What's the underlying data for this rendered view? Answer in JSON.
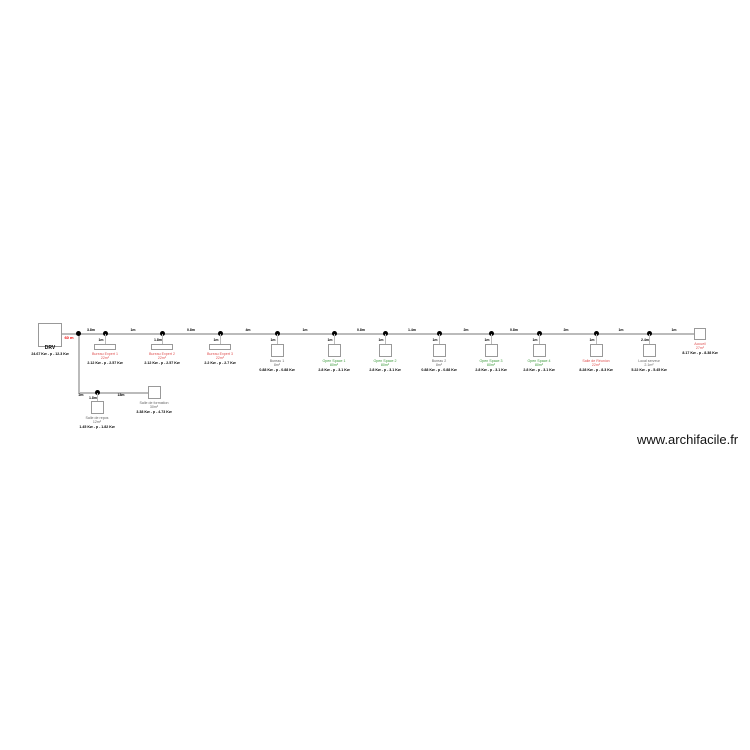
{
  "drv": {
    "label": "DRV",
    "power": "24.67 Kw - p - 12.3 Kw",
    "length": "60 m"
  },
  "segments": [
    "3.8m",
    "1m",
    "0.8m",
    "4m",
    "1m",
    "0.8m",
    "1.4m",
    "2m",
    "0.8m",
    "2m",
    "1m",
    "1m"
  ],
  "rooms": [
    {
      "name": "Bureau Expert 1",
      "area": "22m²",
      "power": "2.12 Kw - p - 2.57 Kw",
      "drop": "1m",
      "color": "#e05050"
    },
    {
      "name": "Bureau Expert 2",
      "area": "22m²",
      "power": "2.12 Kw - p - 2.57 Kw",
      "drop": "1.8m",
      "color": "#e05050"
    },
    {
      "name": "Bureau Expert 3",
      "area": "22m²",
      "power": "2.2 Kw - p - 2.7 Kw",
      "drop": "1m",
      "color": "#e05050"
    },
    {
      "name": "Bureau 1",
      "area": "8m²",
      "power": "0.88 Kw - p - 0.88 Kw",
      "drop": "1m",
      "color": "#666666"
    },
    {
      "name": "Open Space 1",
      "area": "80m²",
      "power": "2.8 Kw - p - 3.1 Kw",
      "drop": "1m",
      "color": "#3a9a3a"
    },
    {
      "name": "Open Space 2",
      "area": "80m²",
      "power": "2.8 Kw - p - 3.1 Kw",
      "drop": "1m",
      "color": "#3a9a3a"
    },
    {
      "name": "Bureau 2",
      "area": "8m²",
      "power": "0.88 Kw - p - 0.88 Kw",
      "drop": "1m",
      "color": "#666666"
    },
    {
      "name": "Open Space 3",
      "area": "80m²",
      "power": "2.8 Kw - p - 3.1 Kw",
      "drop": "1m",
      "color": "#3a9a3a"
    },
    {
      "name": "Open Space 4",
      "area": "80m²",
      "power": "2.8 Kw - p - 3.1 Kw",
      "drop": "1m",
      "color": "#3a9a3a"
    },
    {
      "name": "Salle de Réunion",
      "area": "22m²",
      "power": "8.28 Kw - p - 8.3 Kw",
      "drop": "1m",
      "color": "#e05050"
    },
    {
      "name": "Local serveur",
      "area": "2.1m²",
      "power": "5.22 Kw - p - 5.45 Kw",
      "drop": "2.4m",
      "color": "#666666"
    },
    {
      "name": "Accueil",
      "area": "27m²",
      "power": "8.17 Kw - p - 8.38 Kw",
      "drop": "",
      "color": "#e05050"
    }
  ],
  "branch": {
    "segments": [
      "2m",
      "18m"
    ],
    "rooms": [
      {
        "name": "Salle de repos",
        "area": "12m²",
        "power": "1.45 Kw - p - 1.82 Kw",
        "drop": "1.8m",
        "color": "#666666"
      },
      {
        "name": "Salle de formation",
        "area": "30m²",
        "power": "3.38 Kw - p - 4.73 Kw",
        "drop": "",
        "color": "#666666"
      }
    ]
  },
  "watermark": "www.archifacile.fr"
}
